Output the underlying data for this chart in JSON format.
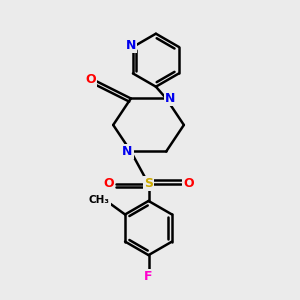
{
  "background_color": "#ebebeb",
  "atom_colors": {
    "C": "#000000",
    "N": "#0000ee",
    "O": "#ff0000",
    "S": "#ccaa00",
    "F": "#ff00cc"
  },
  "bond_color": "#000000",
  "figsize": [
    3.0,
    3.0
  ],
  "dpi": 100
}
